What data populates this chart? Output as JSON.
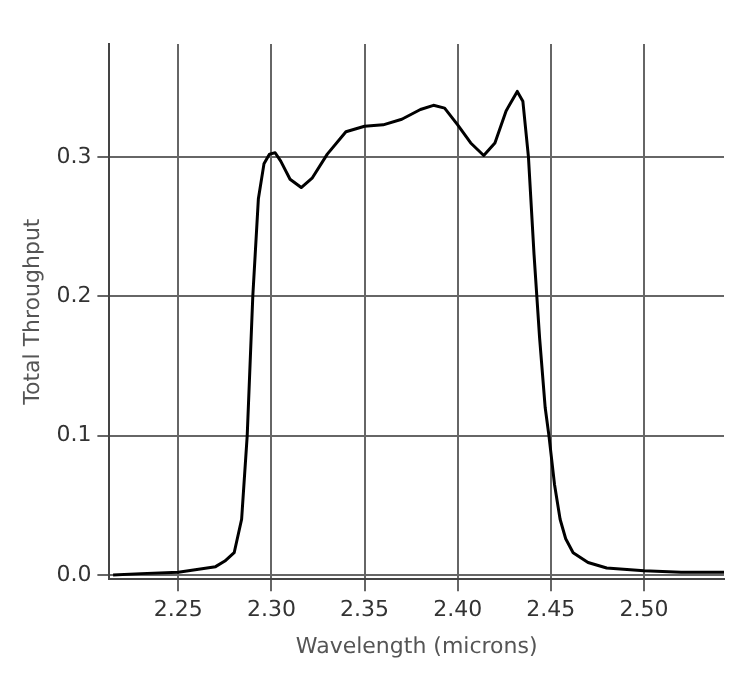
{
  "chart_data": {
    "type": "line",
    "xlabel": "Wavelength (microns)",
    "ylabel": "Total Throughput",
    "series": [
      {
        "color": "#000000",
        "x": [
          2.215,
          2.23,
          2.25,
          2.26,
          2.27,
          2.275,
          2.28,
          2.284,
          2.287,
          2.29,
          2.293,
          2.296,
          2.299,
          2.302,
          2.305,
          2.31,
          2.316,
          2.322,
          2.33,
          2.34,
          2.35,
          2.36,
          2.37,
          2.38,
          2.387,
          2.393,
          2.4,
          2.407,
          2.414,
          2.42,
          2.426,
          2.432,
          2.435,
          2.438,
          2.441,
          2.444,
          2.447,
          2.449,
          2.452,
          2.455,
          2.458,
          2.462,
          2.47,
          2.48,
          2.5,
          2.52,
          2.543
        ],
        "values": [
          0,
          0.001,
          0.002,
          0.004,
          0.006,
          0.01,
          0.016,
          0.04,
          0.1,
          0.2,
          0.27,
          0.295,
          0.302,
          0.303,
          0.297,
          0.284,
          0.278,
          0.285,
          0.302,
          0.318,
          0.322,
          0.323,
          0.327,
          0.334,
          0.337,
          0.335,
          0.323,
          0.31,
          0.301,
          0.31,
          0.333,
          0.347,
          0.34,
          0.3,
          0.23,
          0.17,
          0.12,
          0.1,
          0.065,
          0.04,
          0.026,
          0.016,
          0.009,
          0.005,
          0.003,
          0.002,
          0.002
        ]
      }
    ],
    "xlim": [
      2.213,
      2.543
    ],
    "ylim": [
      -0.003,
      0.381
    ],
    "xticks": [
      {
        "value": 2.25,
        "label": "2.25"
      },
      {
        "value": 2.3,
        "label": "2.30"
      },
      {
        "value": 2.35,
        "label": "2.35"
      },
      {
        "value": 2.4,
        "label": "2.40"
      },
      {
        "value": 2.45,
        "label": "2.45"
      },
      {
        "value": 2.5,
        "label": "2.50"
      }
    ],
    "yticks": [
      {
        "value": 0,
        "label": "0.0"
      },
      {
        "value": 0.1,
        "label": "0.1"
      },
      {
        "value": 0.2,
        "label": "0.2"
      },
      {
        "value": 0.3,
        "label": "0.3"
      }
    ],
    "grid": true,
    "legend": false,
    "marker": "none",
    "line_style": "solid"
  }
}
